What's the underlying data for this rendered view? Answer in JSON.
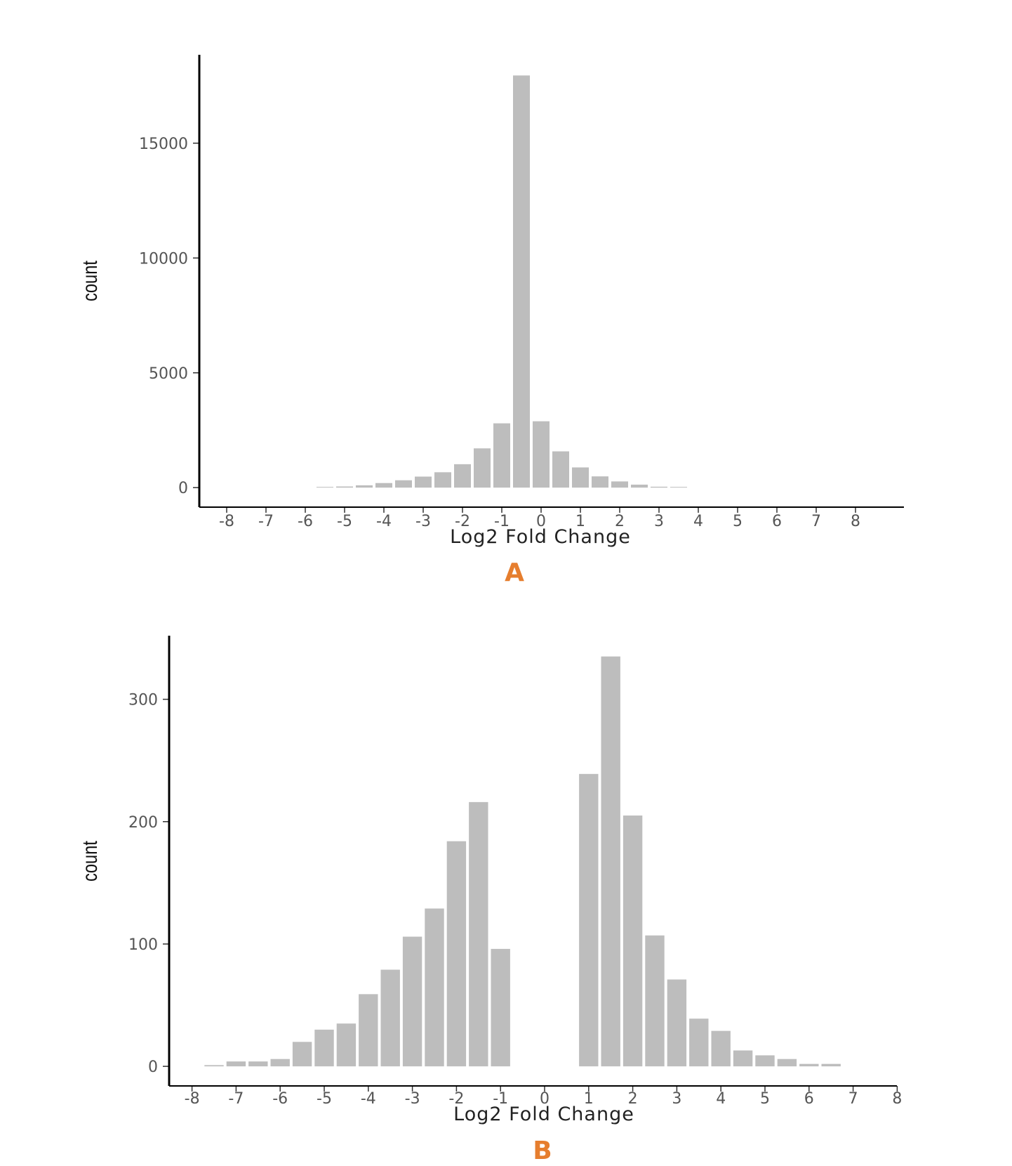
{
  "colors": {
    "bar": "#bdbdbd",
    "axis": "#000000",
    "panel_label": "#e67e2e"
  },
  "chart_data": [
    {
      "type": "bar",
      "panel_label": "A",
      "xlabel": "Log2 Fold Change",
      "ylabel": "count",
      "ylim": [
        -850,
        18850
      ],
      "yticks": [
        0,
        5000,
        10000,
        15000
      ],
      "xticks": [
        -8,
        -7,
        -6,
        -5,
        -4,
        -3,
        -2,
        -1,
        0,
        1,
        2,
        3,
        4,
        5,
        6,
        7,
        8
      ],
      "bin_width": 0.5,
      "x": [
        -5.5,
        -5,
        -4.5,
        -4,
        -3.5,
        -3,
        -2.5,
        -2,
        -1.5,
        -1,
        -0.5,
        0,
        0.5,
        1,
        1.5,
        2,
        2.5,
        3,
        3.5,
        4
      ],
      "values": [
        20,
        50,
        100,
        200,
        320,
        480,
        670,
        1020,
        1710,
        2800,
        17950,
        2890,
        1580,
        880,
        490,
        270,
        130,
        40,
        10,
        0
      ]
    },
    {
      "type": "bar",
      "panel_label": "B",
      "xlabel": "Log2 Fold Change",
      "ylabel": "count",
      "ylim": [
        -16,
        352
      ],
      "yticks": [
        0,
        100,
        200,
        300
      ],
      "xticks": [
        -8,
        -7,
        -6,
        -5,
        -4,
        -3,
        -2,
        -1,
        0,
        1,
        2,
        3,
        4,
        5,
        6,
        7,
        8
      ],
      "bin_width": 0.5,
      "x": [
        -7.5,
        -7,
        -6.5,
        -6,
        -5.5,
        -5,
        -4.5,
        -4,
        -3.5,
        -3,
        -2.5,
        -2,
        -1.5,
        -1,
        1,
        1.5,
        2,
        2.5,
        3,
        3.5,
        4,
        4.5,
        5,
        5.5,
        6,
        6.5
      ],
      "values": [
        1,
        4,
        4,
        6,
        20,
        30,
        35,
        59,
        79,
        106,
        129,
        184,
        216,
        96,
        239,
        335,
        205,
        107,
        71,
        39,
        29,
        13,
        9,
        6,
        2,
        2
      ]
    }
  ]
}
